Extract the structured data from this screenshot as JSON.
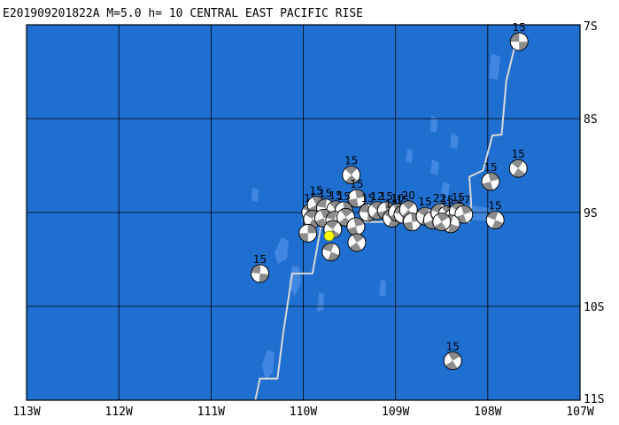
{
  "map": {
    "title": "E201909201822A M=5.0 h= 10 CENTRAL EAST PACIFIC RISE",
    "lon_range": [
      -113,
      -107
    ],
    "lat_range": [
      -11,
      -7
    ],
    "x_ticks": [
      {
        "lon": -113,
        "label": "113W"
      },
      {
        "lon": -112,
        "label": "112W"
      },
      {
        "lon": -111,
        "label": "111W"
      },
      {
        "lon": -110,
        "label": "110W"
      },
      {
        "lon": -109,
        "label": "109W"
      },
      {
        "lon": -108,
        "label": "108W"
      },
      {
        "lon": -107,
        "label": "107W"
      }
    ],
    "y_ticks": [
      {
        "lat": -7,
        "label": "7S"
      },
      {
        "lat": -8,
        "label": "8S"
      },
      {
        "lat": -9,
        "label": "9S"
      },
      {
        "lat": -10,
        "label": "10S"
      },
      {
        "lat": -11,
        "label": "11S"
      }
    ],
    "colors": {
      "ocean": "#1e6fd0",
      "shallow": "#4a8de6",
      "grid": "#000000",
      "ridge": "#d8d8d8",
      "beach_dark": "#8c8c8c",
      "beach_light": "#ffffff",
      "epicenter": "#ffff00"
    },
    "epicenter": {
      "lon": -109.72,
      "lat": -9.25
    },
    "plate_boundary": [
      [
        -110.52,
        -11.0
      ],
      [
        -110.47,
        -10.77
      ],
      [
        -110.28,
        -10.77
      ],
      [
        -110.22,
        -10.3
      ],
      [
        -110.12,
        -9.65
      ],
      [
        -109.9,
        -9.65
      ],
      [
        -109.8,
        -9.1
      ],
      [
        -108.2,
        -9.1
      ],
      [
        -108.18,
        -8.9
      ],
      [
        -108.2,
        -8.62
      ],
      [
        -108.05,
        -8.55
      ],
      [
        -107.95,
        -8.18
      ],
      [
        -107.85,
        -8.17
      ],
      [
        -107.8,
        -7.6
      ],
      [
        -107.7,
        -7.2
      ]
    ],
    "mechanisms": [
      {
        "lon": -107.66,
        "lat": -7.18,
        "depth": "15"
      },
      {
        "lon": -107.67,
        "lat": -8.53,
        "depth": "15"
      },
      {
        "lon": -107.97,
        "lat": -8.67,
        "depth": "15"
      },
      {
        "lon": -107.92,
        "lat": -9.08,
        "depth": "15"
      },
      {
        "lon": -108.38,
        "lat": -10.58,
        "depth": "15"
      },
      {
        "lon": -110.47,
        "lat": -9.65,
        "depth": "15"
      },
      {
        "lon": -109.48,
        "lat": -8.6,
        "depth": "15"
      },
      {
        "lon": -109.42,
        "lat": -8.85,
        "depth": "15"
      },
      {
        "lon": -109.92,
        "lat": -9.0,
        "depth": "15"
      },
      {
        "lon": -109.86,
        "lat": -8.92,
        "depth": "15"
      },
      {
        "lon": -109.76,
        "lat": -8.95,
        "depth": "15"
      },
      {
        "lon": -109.65,
        "lat": -8.97,
        "depth": "15"
      },
      {
        "lon": -109.56,
        "lat": -8.98,
        "depth": "15"
      },
      {
        "lon": -109.9,
        "lat": -9.07,
        "depth": ""
      },
      {
        "lon": -109.78,
        "lat": -9.06,
        "depth": ""
      },
      {
        "lon": -109.66,
        "lat": -9.08,
        "depth": ""
      },
      {
        "lon": -109.54,
        "lat": -9.05,
        "depth": ""
      },
      {
        "lon": -109.95,
        "lat": -9.22,
        "depth": ""
      },
      {
        "lon": -109.68,
        "lat": -9.18,
        "depth": ""
      },
      {
        "lon": -109.43,
        "lat": -9.15,
        "depth": ""
      },
      {
        "lon": -109.7,
        "lat": -9.42,
        "depth": ""
      },
      {
        "lon": -109.42,
        "lat": -9.32,
        "depth": ""
      },
      {
        "lon": -109.3,
        "lat": -9.0,
        "depth": "15"
      },
      {
        "lon": -109.2,
        "lat": -8.98,
        "depth": "12"
      },
      {
        "lon": -109.1,
        "lat": -8.98,
        "depth": "15"
      },
      {
        "lon": -109.04,
        "lat": -9.06,
        "depth": "15"
      },
      {
        "lon": -108.98,
        "lat": -9.0,
        "depth": "10"
      },
      {
        "lon": -108.92,
        "lat": -9.02,
        "depth": "15"
      },
      {
        "lon": -108.86,
        "lat": -8.97,
        "depth": "20"
      },
      {
        "lon": -108.82,
        "lat": -9.1,
        "depth": ""
      },
      {
        "lon": -108.68,
        "lat": -9.04,
        "depth": "15"
      },
      {
        "lon": -108.6,
        "lat": -9.08,
        "depth": ""
      },
      {
        "lon": -108.52,
        "lat": -9.0,
        "depth": "22"
      },
      {
        "lon": -108.44,
        "lat": -9.02,
        "depth": "15"
      },
      {
        "lon": -108.38,
        "lat": -9.06,
        "depth": "12"
      },
      {
        "lon": -108.32,
        "lat": -8.99,
        "depth": "15"
      },
      {
        "lon": -108.26,
        "lat": -9.02,
        "depth": "17"
      },
      {
        "lon": -108.4,
        "lat": -9.12,
        "depth": ""
      },
      {
        "lon": -108.5,
        "lat": -9.1,
        "depth": ""
      }
    ]
  }
}
